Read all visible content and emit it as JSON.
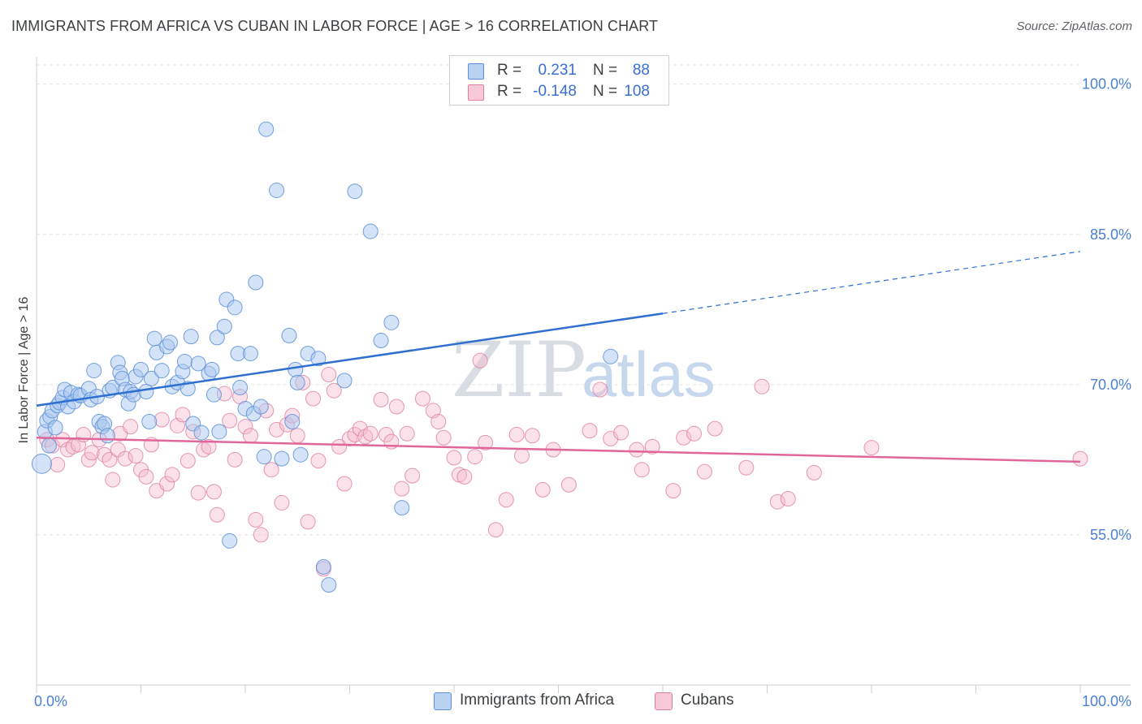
{
  "title": "IMMIGRANTS FROM AFRICA VS CUBAN IN LABOR FORCE | AGE > 16 CORRELATION CHART",
  "source": "Source: ZipAtlas.com",
  "watermark": {
    "zip": "ZIP",
    "atlas": "atlas"
  },
  "colors": {
    "blue_fill": "#aac8ef",
    "blue_stroke": "#5b8fd8",
    "blue_line": "#2f6fd0",
    "pink_fill": "#f4bcd0",
    "pink_stroke": "#e07ea2",
    "pink_line": "#e0679a",
    "tick_text": "#4a7fd6",
    "grid": "#e3e3e3"
  },
  "legend": {
    "rows": [
      {
        "r_label": "R =",
        "r_value": "0.231",
        "n_label": "N =",
        "n_value": "88"
      },
      {
        "r_label": "R =",
        "r_value": "-0.148",
        "n_label": "N =",
        "n_value": "108"
      }
    ]
  },
  "chart_data": {
    "type": "scatter",
    "title": "IMMIGRANTS FROM AFRICA VS CUBAN IN LABOR FORCE | AGE > 16 CORRELATION CHART",
    "xlabel": "",
    "ylabel": "In Labor Force | Age > 16",
    "xlim": [
      0,
      100
    ],
    "ylim": [
      40,
      102
    ],
    "x_tick_labels": [
      "0.0%",
      "100.0%"
    ],
    "y_ticks": [
      55,
      70,
      85,
      100
    ],
    "y_tick_labels": [
      "55.0%",
      "70.0%",
      "85.0%",
      "100.0%"
    ],
    "grid": true,
    "legend_position": "top-center",
    "series": [
      {
        "name": "Immigrants from Africa",
        "color": "#5b8fd8",
        "r": 0.231,
        "n": 88,
        "trend": {
          "x0": 0,
          "y0": 67.9,
          "x1": 60,
          "y1": 77.1,
          "dashed_to_x": 100,
          "dashed_to_y": 83.3
        },
        "points": [
          [
            0.5,
            62.1
          ],
          [
            0.8,
            65.3
          ],
          [
            1.0,
            66.4
          ],
          [
            1.2,
            63.9
          ],
          [
            1.3,
            66.8
          ],
          [
            1.5,
            67.4
          ],
          [
            1.8,
            65.7
          ],
          [
            2.0,
            67.9
          ],
          [
            2.2,
            68.2
          ],
          [
            2.5,
            68.7
          ],
          [
            2.7,
            69.5
          ],
          [
            3.0,
            67.8
          ],
          [
            3.3,
            69.2
          ],
          [
            3.6,
            68.3
          ],
          [
            4.0,
            69.0
          ],
          [
            4.2,
            68.9
          ],
          [
            5.0,
            69.6
          ],
          [
            5.2,
            68.5
          ],
          [
            5.5,
            71.4
          ],
          [
            5.8,
            68.8
          ],
          [
            6.0,
            66.3
          ],
          [
            6.3,
            65.8
          ],
          [
            6.5,
            66.1
          ],
          [
            6.8,
            64.9
          ],
          [
            7.0,
            69.4
          ],
          [
            7.3,
            69.7
          ],
          [
            7.8,
            72.2
          ],
          [
            8.0,
            71.2
          ],
          [
            8.2,
            70.6
          ],
          [
            8.5,
            69.5
          ],
          [
            8.8,
            68.1
          ],
          [
            9.0,
            69.3
          ],
          [
            9.3,
            69.0
          ],
          [
            9.5,
            70.8
          ],
          [
            10.0,
            71.5
          ],
          [
            10.5,
            69.3
          ],
          [
            10.8,
            66.3
          ],
          [
            11.0,
            70.6
          ],
          [
            11.3,
            74.6
          ],
          [
            11.5,
            73.2
          ],
          [
            12.0,
            71.4
          ],
          [
            12.5,
            73.8
          ],
          [
            12.8,
            74.2
          ],
          [
            13.0,
            69.8
          ],
          [
            13.5,
            70.2
          ],
          [
            14.0,
            71.3
          ],
          [
            14.2,
            72.3
          ],
          [
            14.5,
            69.6
          ],
          [
            14.8,
            74.8
          ],
          [
            15.0,
            66.1
          ],
          [
            15.5,
            72.1
          ],
          [
            15.8,
            65.2
          ],
          [
            16.5,
            71.1
          ],
          [
            16.8,
            71.5
          ],
          [
            17.0,
            69.0
          ],
          [
            17.3,
            74.7
          ],
          [
            17.5,
            65.3
          ],
          [
            18.0,
            75.8
          ],
          [
            18.2,
            78.5
          ],
          [
            19.0,
            77.7
          ],
          [
            19.3,
            73.1
          ],
          [
            19.5,
            69.7
          ],
          [
            20.0,
            67.6
          ],
          [
            20.5,
            73.1
          ],
          [
            20.8,
            67.1
          ],
          [
            21.0,
            80.2
          ],
          [
            21.5,
            67.8
          ],
          [
            21.8,
            62.8
          ],
          [
            22.0,
            95.5
          ],
          [
            23.0,
            89.4
          ],
          [
            23.5,
            62.6
          ],
          [
            24.2,
            74.9
          ],
          [
            24.5,
            66.3
          ],
          [
            24.8,
            71.5
          ],
          [
            25.0,
            70.2
          ],
          [
            25.3,
            63.0
          ],
          [
            26.0,
            73.1
          ],
          [
            27.0,
            72.6
          ],
          [
            27.5,
            51.8
          ],
          [
            28.0,
            50.0
          ],
          [
            29.5,
            70.4
          ],
          [
            30.5,
            89.3
          ],
          [
            32.0,
            85.3
          ],
          [
            33.0,
            74.4
          ],
          [
            34.0,
            76.2
          ],
          [
            35.0,
            57.7
          ],
          [
            55.0,
            72.8
          ],
          [
            18.5,
            54.4
          ]
        ]
      },
      {
        "name": "Cubans",
        "color": "#e07ea2",
        "r": -0.148,
        "n": 108,
        "trend": {
          "x0": 0,
          "y0": 64.7,
          "x1": 100,
          "y1": 62.3
        },
        "points": [
          [
            1.0,
            64.5
          ],
          [
            1.5,
            63.9
          ],
          [
            2.0,
            62.0
          ],
          [
            2.5,
            64.5
          ],
          [
            3.0,
            63.5
          ],
          [
            3.5,
            63.8
          ],
          [
            4.0,
            64.0
          ],
          [
            4.5,
            65.0
          ],
          [
            5.0,
            62.5
          ],
          [
            5.3,
            63.2
          ],
          [
            6.0,
            64.5
          ],
          [
            6.5,
            63.0
          ],
          [
            7.0,
            62.5
          ],
          [
            7.3,
            60.5
          ],
          [
            7.8,
            63.5
          ],
          [
            8.0,
            65.1
          ],
          [
            8.5,
            62.6
          ],
          [
            9.0,
            65.8
          ],
          [
            9.5,
            62.9
          ],
          [
            10.0,
            61.5
          ],
          [
            10.5,
            60.8
          ],
          [
            11.0,
            64.0
          ],
          [
            11.5,
            59.4
          ],
          [
            12.0,
            66.5
          ],
          [
            12.5,
            60.1
          ],
          [
            13.0,
            61.0
          ],
          [
            13.5,
            65.9
          ],
          [
            14.0,
            67.0
          ],
          [
            14.5,
            62.4
          ],
          [
            15.0,
            65.3
          ],
          [
            15.5,
            59.2
          ],
          [
            16.0,
            63.5
          ],
          [
            16.5,
            63.8
          ],
          [
            17.0,
            59.3
          ],
          [
            17.3,
            57.0
          ],
          [
            18.0,
            69.1
          ],
          [
            18.5,
            66.4
          ],
          [
            19.0,
            62.5
          ],
          [
            19.5,
            68.8
          ],
          [
            20.0,
            65.8
          ],
          [
            20.5,
            64.9
          ],
          [
            21.0,
            56.5
          ],
          [
            21.5,
            55.0
          ],
          [
            22.0,
            67.4
          ],
          [
            22.5,
            61.5
          ],
          [
            23.0,
            65.5
          ],
          [
            23.5,
            58.2
          ],
          [
            24.0,
            66.0
          ],
          [
            24.5,
            66.9
          ],
          [
            25.0,
            64.9
          ],
          [
            25.5,
            70.2
          ],
          [
            26.0,
            56.3
          ],
          [
            26.5,
            68.6
          ],
          [
            27.0,
            62.4
          ],
          [
            27.5,
            51.6
          ],
          [
            28.0,
            71.0
          ],
          [
            28.5,
            69.4
          ],
          [
            29.0,
            63.8
          ],
          [
            29.5,
            60.1
          ],
          [
            30.0,
            64.6
          ],
          [
            30.5,
            65.0
          ],
          [
            31.0,
            65.6
          ],
          [
            31.5,
            64.8
          ],
          [
            32.0,
            65.1
          ],
          [
            33.0,
            68.5
          ],
          [
            33.5,
            65.0
          ],
          [
            34.0,
            64.3
          ],
          [
            34.5,
            67.8
          ],
          [
            35.0,
            59.6
          ],
          [
            35.5,
            65.1
          ],
          [
            36.0,
            60.9
          ],
          [
            37.0,
            68.6
          ],
          [
            38.0,
            67.4
          ],
          [
            38.5,
            66.3
          ],
          [
            39.0,
            64.7
          ],
          [
            40.0,
            62.7
          ],
          [
            40.5,
            61.0
          ],
          [
            41.0,
            60.8
          ],
          [
            42.0,
            62.8
          ],
          [
            42.5,
            72.4
          ],
          [
            43.0,
            64.2
          ],
          [
            44.0,
            55.5
          ],
          [
            45.0,
            58.5
          ],
          [
            46.0,
            65.0
          ],
          [
            46.5,
            62.9
          ],
          [
            47.5,
            64.9
          ],
          [
            48.5,
            59.5
          ],
          [
            49.5,
            63.5
          ],
          [
            51.0,
            60.0
          ],
          [
            53.0,
            65.4
          ],
          [
            54.0,
            69.5
          ],
          [
            55.0,
            64.6
          ],
          [
            56.0,
            65.2
          ],
          [
            57.5,
            63.5
          ],
          [
            58.0,
            61.5
          ],
          [
            59.0,
            63.8
          ],
          [
            61.0,
            59.4
          ],
          [
            62.0,
            64.7
          ],
          [
            63.0,
            65.1
          ],
          [
            64.0,
            61.3
          ],
          [
            65.0,
            65.6
          ],
          [
            68.0,
            61.7
          ],
          [
            69.5,
            69.8
          ],
          [
            71.0,
            58.3
          ],
          [
            72.0,
            58.6
          ],
          [
            74.5,
            61.2
          ],
          [
            80.0,
            63.7
          ],
          [
            100.0,
            62.6
          ]
        ]
      }
    ]
  },
  "bottom_legend": [
    {
      "label": "Immigrants from Africa"
    },
    {
      "label": "Cubans"
    }
  ]
}
